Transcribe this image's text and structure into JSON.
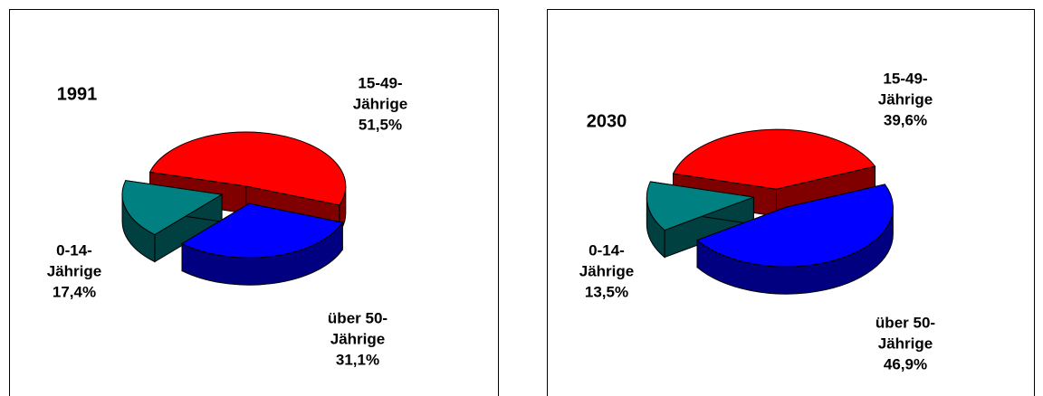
{
  "chart_data": [
    {
      "type": "pie",
      "title": "1991",
      "categories": [
        "15-49-Jährige",
        "über 50-Jährige",
        "0-14-Jährige"
      ],
      "values": [
        51.5,
        31.1,
        17.4
      ],
      "value_labels": [
        "51,5%",
        "31,1%",
        "17,4%"
      ],
      "colors": [
        "#ff0000",
        "#0000ff",
        "#008080"
      ]
    },
    {
      "type": "pie",
      "title": "2030",
      "categories": [
        "15-49-Jährige",
        "über 50-Jährige",
        "0-14-Jährige"
      ],
      "values": [
        39.6,
        46.9,
        13.5
      ],
      "value_labels": [
        "39,6%",
        "46,9%",
        "13,5%"
      ],
      "colors": [
        "#ff0000",
        "#0000ff",
        "#008080"
      ]
    }
  ]
}
